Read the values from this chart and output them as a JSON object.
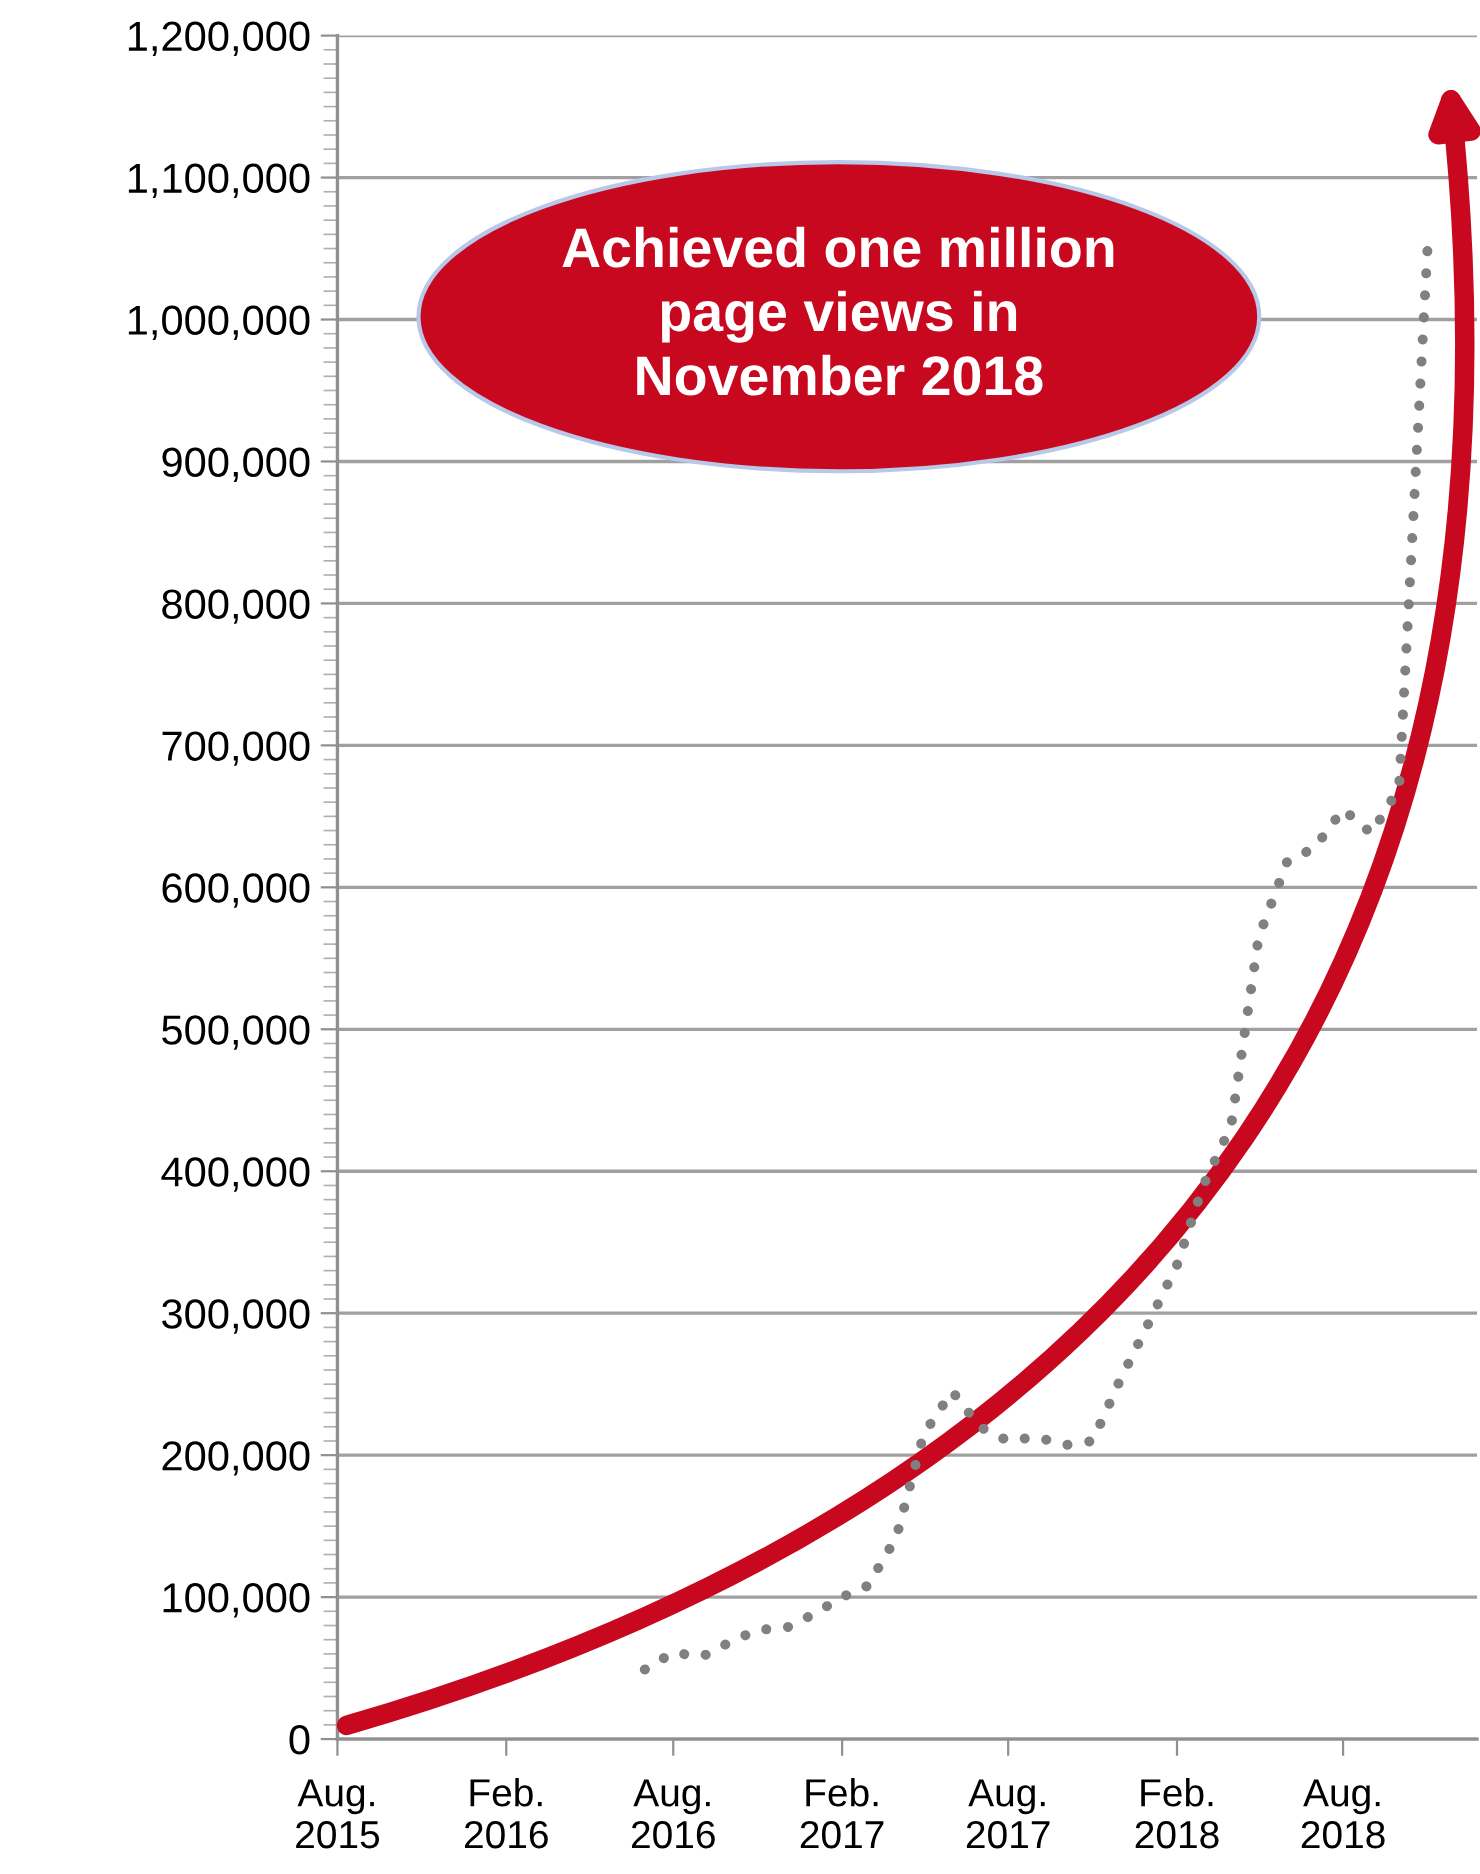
{
  "chart_data": {
    "type": "line",
    "x": [
      "2016-07",
      "2016-08",
      "2016-09",
      "2016-10",
      "2016-11",
      "2016-12",
      "2017-01",
      "2017-02",
      "2017-03",
      "2017-04",
      "2017-05",
      "2017-06",
      "2017-07",
      "2017-08",
      "2017-09",
      "2017-10",
      "2017-11",
      "2017-12",
      "2018-01",
      "2018-02",
      "2018-03",
      "2018-04",
      "2018-05",
      "2018-06",
      "2018-07",
      "2018-08",
      "2018-09",
      "2018-10",
      "2018-11"
    ],
    "series": [
      {
        "color": "#808080",
        "line_style": "dotted",
        "values": [
          49000,
          61000,
          58000,
          68000,
          77000,
          78000,
          88000,
          100000,
          108000,
          142000,
          215000,
          245000,
          220000,
          210000,
          213000,
          207000,
          210000,
          253000,
          293000,
          334000,
          389000,
          432000,
          565000,
          618000,
          628000,
          655000,
          638000,
          670000,
          1050000
        ]
      }
    ],
    "xlim": [
      "2015-08",
      "2018-12-25"
    ],
    "xticks": [
      {
        "value": "2015-08",
        "label": "Aug.\n2015"
      },
      {
        "value": "2016-02",
        "label": "Feb.\n2016"
      },
      {
        "value": "2016-08",
        "label": "Aug.\n2016"
      },
      {
        "value": "2017-02",
        "label": "Feb.\n2017"
      },
      {
        "value": "2017-08",
        "label": "Aug.\n2017"
      },
      {
        "value": "2018-02",
        "label": "Feb.\n2018"
      },
      {
        "value": "2018-08",
        "label": "Aug.\n2018"
      }
    ],
    "ylim": [
      0,
      1200000
    ],
    "yticks": [
      {
        "value": 0,
        "label": "0"
      },
      {
        "value": 100000,
        "label": "100,000"
      },
      {
        "value": 200000,
        "label": "200,000"
      },
      {
        "value": 300000,
        "label": "300,000"
      },
      {
        "value": 400000,
        "label": "400,000"
      },
      {
        "value": 500000,
        "label": "500,000"
      },
      {
        "value": 600000,
        "label": "600,000"
      },
      {
        "value": 700000,
        "label": "700,000"
      },
      {
        "value": 800000,
        "label": "800,000"
      },
      {
        "value": 900000,
        "label": "900,000"
      },
      {
        "value": 1000000,
        "label": "1,000,000"
      },
      {
        "value": 1100000,
        "label": "1,100,000"
      },
      {
        "value": 1200000,
        "label": "1,200,000"
      }
    ],
    "grid": "y",
    "marker": "none",
    "annotations": [
      "Achieved one million\npage views in\nNovember 2018"
    ]
  }
}
